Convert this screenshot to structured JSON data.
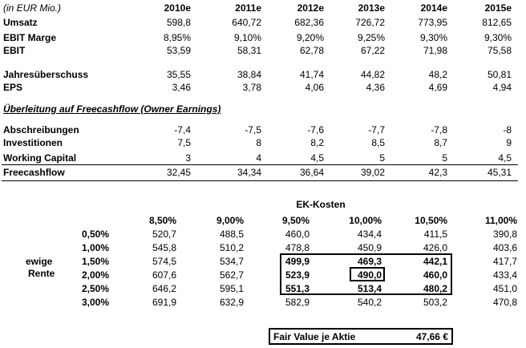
{
  "header": {
    "unit_label": "(in EUR Mio.)",
    "years": [
      "2010e",
      "2011e",
      "2012e",
      "2013e",
      "2014e",
      "2015e"
    ]
  },
  "financials": [
    {
      "label": "Umsatz",
      "values": [
        "598,8",
        "640,72",
        "682,36",
        "726,72",
        "773,95",
        "812,65"
      ]
    },
    {
      "label": "EBIT Marge",
      "values": [
        "8,95%",
        "9,10%",
        "9,20%",
        "9,25%",
        "9,30%",
        "9,30%"
      ]
    },
    {
      "label": "EBIT",
      "values": [
        "53,59",
        "58,31",
        "62,78",
        "67,22",
        "71,98",
        "75,58"
      ]
    },
    {
      "label": "Jahresüberschuss",
      "values": [
        "35,55",
        "38,84",
        "41,74",
        "44,82",
        "48,2",
        "50,81"
      ]
    },
    {
      "label": "EPS",
      "values": [
        "3,46",
        "3,78",
        "4,06",
        "4,36",
        "4,69",
        "4,94"
      ]
    }
  ],
  "fcf_section_title": "Überleitung auf Freecashflow (Owner Earnings)",
  "fcf_rows": [
    {
      "label": "Abschreibungen",
      "values": [
        "-7,4",
        "-7,5",
        "-7,6",
        "-7,7",
        "-7,8",
        "-8"
      ]
    },
    {
      "label": "Investitionen",
      "values": [
        "7,5",
        "8",
        "8,2",
        "8,5",
        "8,7",
        "9"
      ]
    },
    {
      "label": "Working Capital",
      "values": [
        "3",
        "4",
        "4,5",
        "5",
        "5",
        "4,5"
      ]
    }
  ],
  "fcf_total": {
    "label": "Freecashflow",
    "values": [
      "32,45",
      "34,34",
      "36,64",
      "39,02",
      "42,3",
      "45,31"
    ]
  },
  "sensitivity": {
    "title": "EK-Kosten",
    "row_axis_label_1": "ewige",
    "row_axis_label_2": "Rente",
    "columns": [
      "8,50%",
      "9,00%",
      "9,50%",
      "10,00%",
      "10,50%",
      "11,00%"
    ],
    "rows": [
      {
        "growth": "0,50%",
        "values": [
          "520,7",
          "488,5",
          "460,0",
          "434,4",
          "411,5",
          "390,8"
        ]
      },
      {
        "growth": "1,00%",
        "values": [
          "545,8",
          "510,2",
          "478,8",
          "450,9",
          "426,0",
          "403,6"
        ]
      },
      {
        "growth": "1,50%",
        "values": [
          "574,5",
          "534,7",
          "499,9",
          "469,3",
          "442,1",
          "417,7"
        ]
      },
      {
        "growth": "2,00%",
        "values": [
          "607,6",
          "562,7",
          "523,9",
          "490,0",
          "460,0",
          "433,4"
        ]
      },
      {
        "growth": "2,50%",
        "values": [
          "646,2",
          "595,1",
          "551,3",
          "513,4",
          "480,2",
          "451,0"
        ]
      },
      {
        "growth": "3,00%",
        "values": [
          "691,9",
          "632,9",
          "582,9",
          "540,2",
          "503,2",
          "470,8"
        ]
      }
    ]
  },
  "fair_value": {
    "label": "Fair Value je Aktie",
    "value": "47,66 €"
  }
}
